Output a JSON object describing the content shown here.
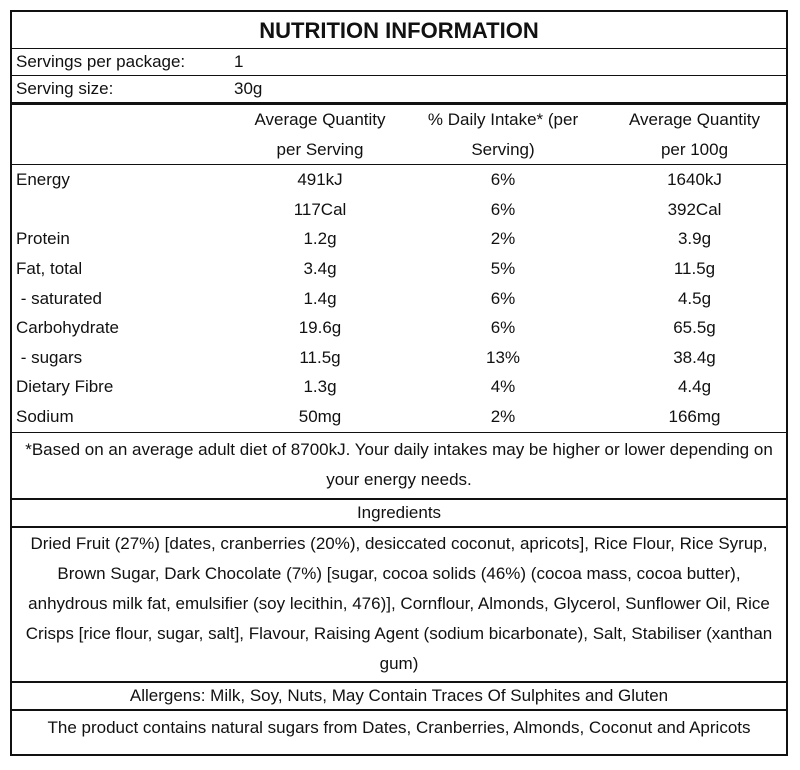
{
  "title": "NUTRITION INFORMATION",
  "servings": {
    "label": "Servings per package:",
    "value": "1"
  },
  "serving_size": {
    "label": "Serving size:",
    "value": "30g"
  },
  "columns": {
    "c1a": "Average Quantity",
    "c1b": "per Serving",
    "c2a": "% Daily Intake* (per",
    "c2b": "Serving)",
    "c3a": "Average Quantity",
    "c3b": "per 100g"
  },
  "rows": [
    {
      "name": "Energy",
      "per_serving": "491kJ",
      "di": "6%",
      "per_100g": "1640kJ"
    },
    {
      "name": "",
      "per_serving": "117Cal",
      "di": "6%",
      "per_100g": "392Cal"
    },
    {
      "name": "Protein",
      "per_serving": "1.2g",
      "di": "2%",
      "per_100g": "3.9g"
    },
    {
      "name": "Fat, total",
      "per_serving": "3.4g",
      "di": "5%",
      "per_100g": "11.5g"
    },
    {
      "name": " - saturated",
      "per_serving": "1.4g",
      "di": "6%",
      "per_100g": "4.5g"
    },
    {
      "name": "Carbohydrate",
      "per_serving": "19.6g",
      "di": "6%",
      "per_100g": "65.5g"
    },
    {
      "name": " - sugars",
      "per_serving": "11.5g",
      "di": "13%",
      "per_100g": "38.4g"
    },
    {
      "name": "Dietary Fibre",
      "per_serving": "1.3g",
      "di": "4%",
      "per_100g": "4.4g"
    },
    {
      "name": "Sodium",
      "per_serving": "50mg",
      "di": "2%",
      "per_100g": "166mg"
    }
  ],
  "footnote": "*Based on an average adult diet of 8700kJ. Your daily intakes may be higher or lower depending on your energy needs.",
  "ingredients_heading": "Ingredients",
  "ingredients": "Dried Fruit (27%) [dates, cranberries (20%), desiccated coconut, apricots], Rice Flour, Rice Syrup, Brown Sugar, Dark Chocolate (7%) [sugar, cocoa solids (46%) (cocoa mass, cocoa butter), anhydrous milk fat, emulsifier (soy lecithin, 476)], Cornflour, Almonds, Glycerol, Sunflower Oil, Rice Crisps [rice flour, sugar, salt], Flavour, Raising Agent (sodium bicarbonate), Salt, Stabiliser (xanthan gum)",
  "allergens": "Allergens: Milk, Soy, Nuts, May Contain Traces Of Sulphites and Gluten",
  "sugars_statement": "The product contains natural sugars from Dates, Cranberries, Almonds, Coconut and Apricots"
}
